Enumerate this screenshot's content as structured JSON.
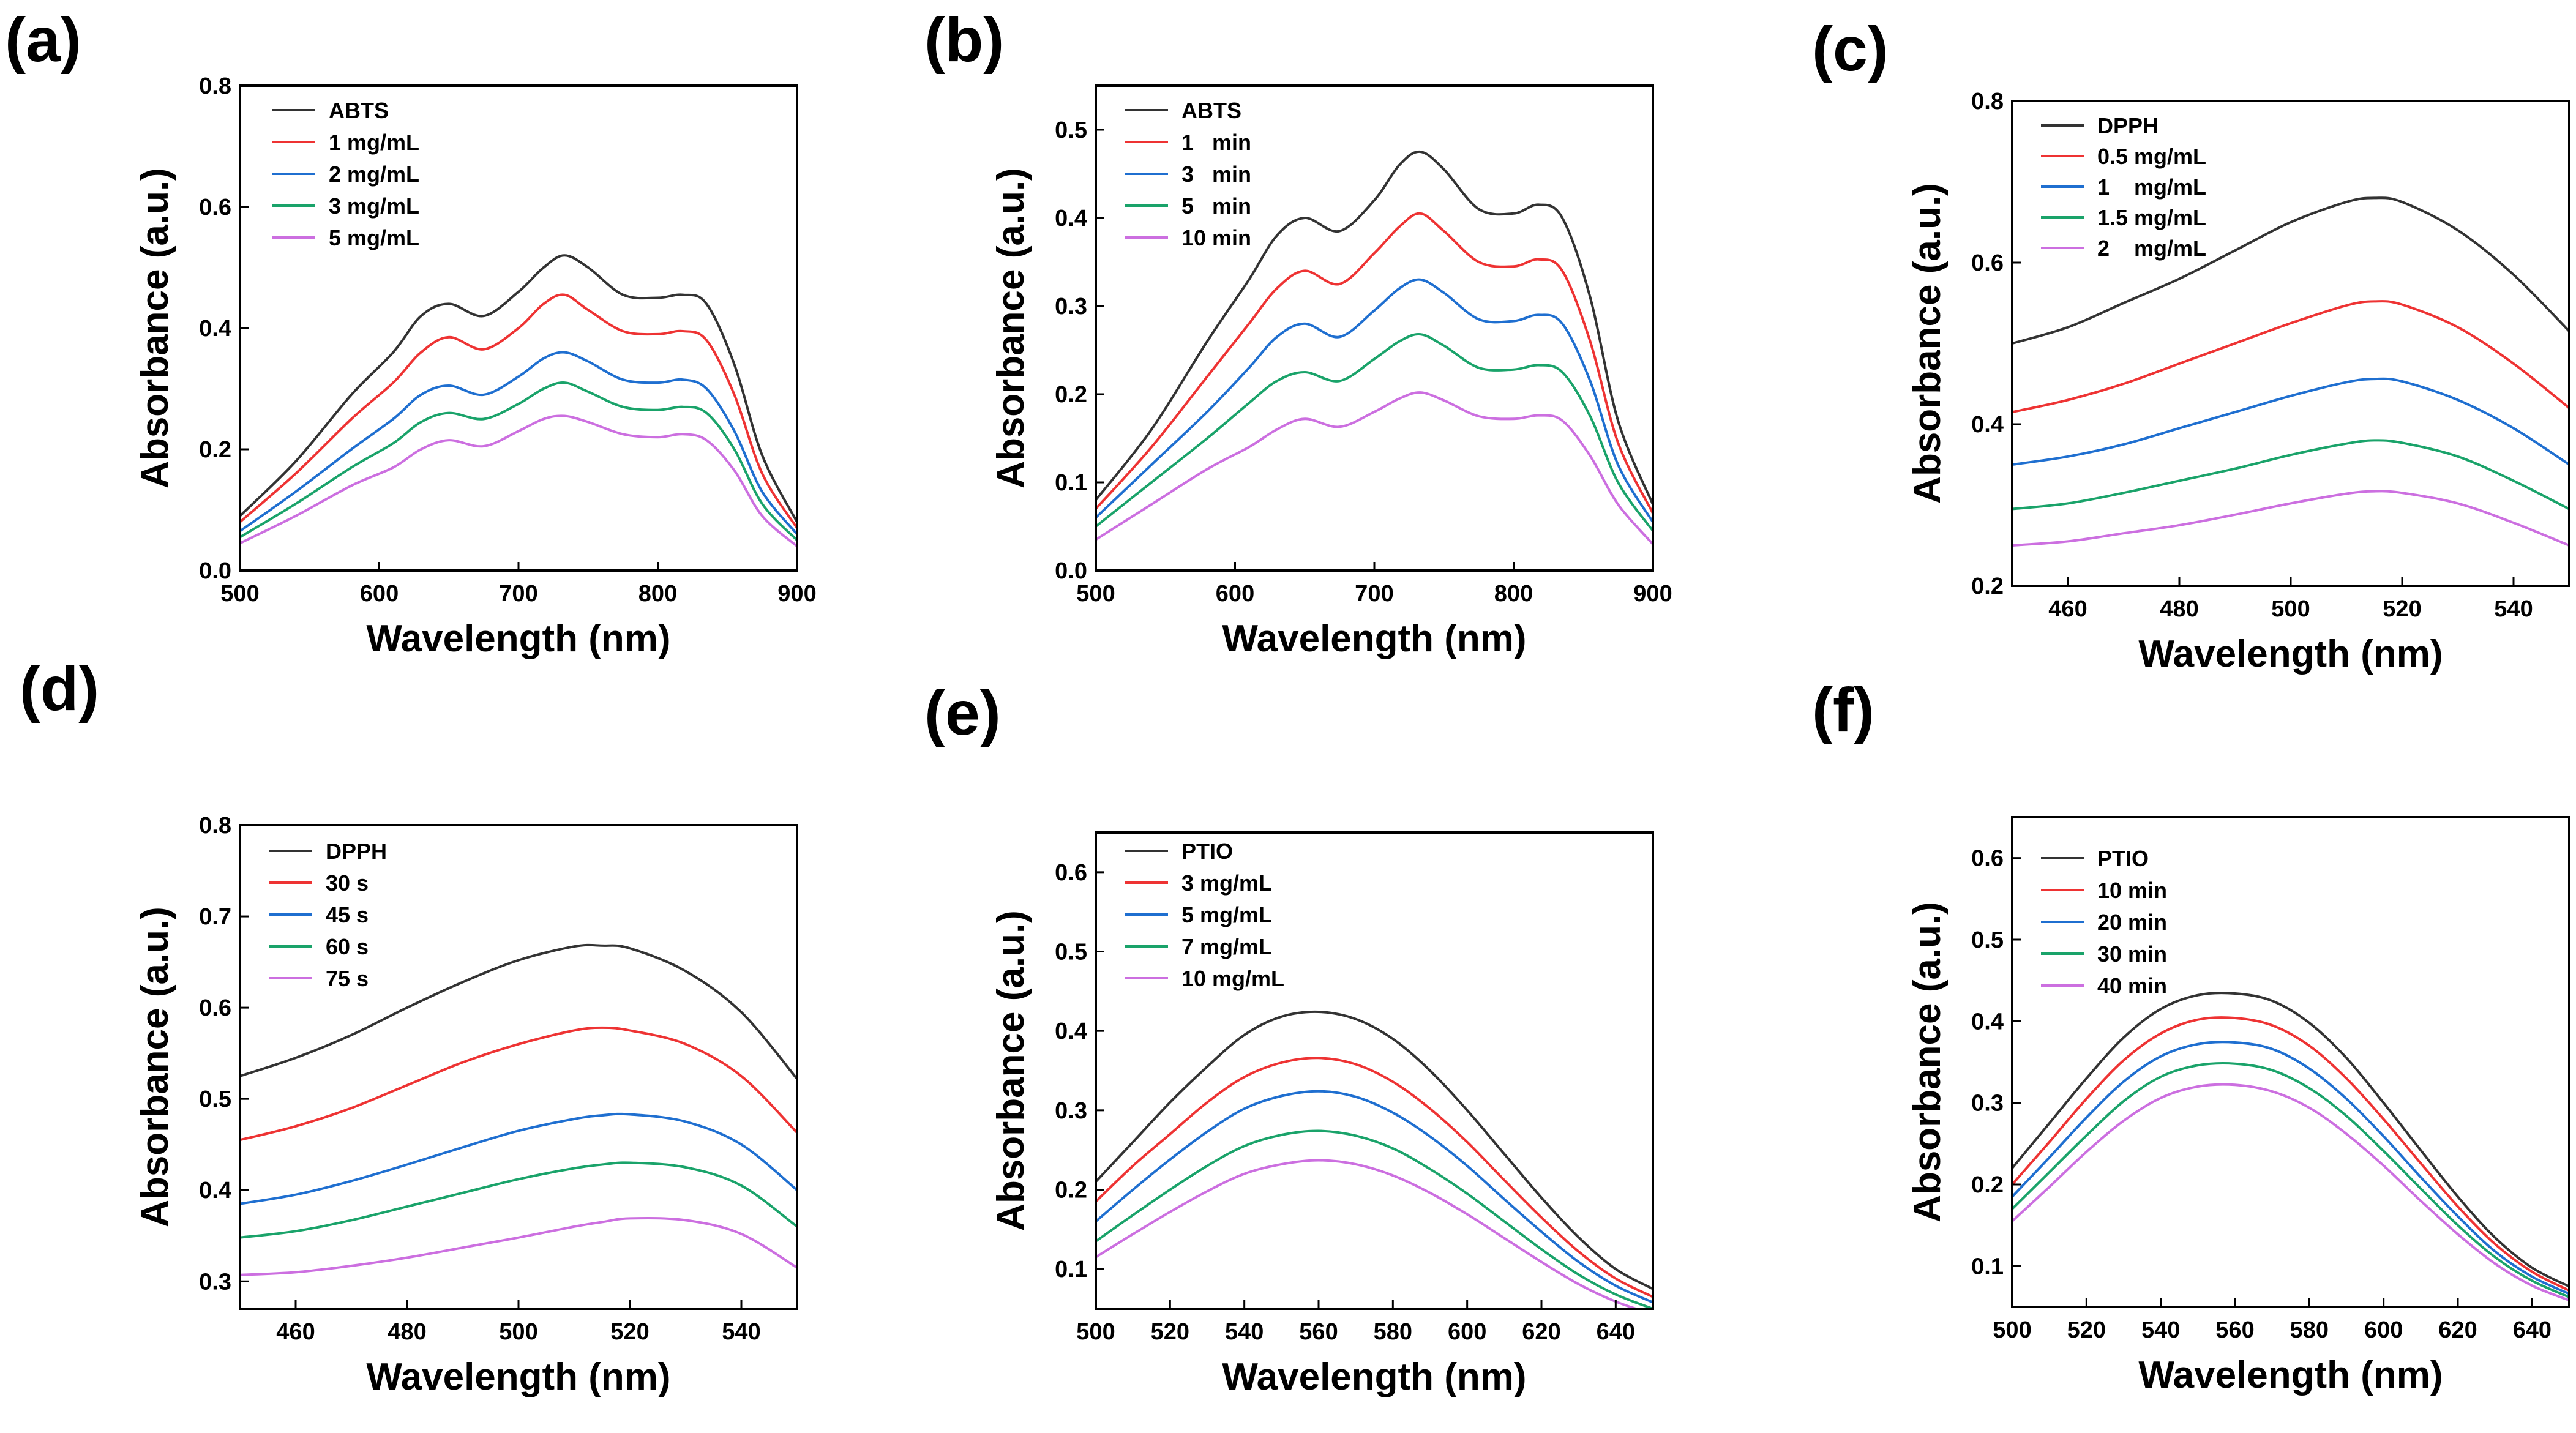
{
  "colors": {
    "black": "#333333",
    "red": "#ee3333",
    "blue": "#1f6fd0",
    "green": "#1aa36a",
    "magenta": "#cc6fe0"
  },
  "chart_data": [
    {
      "id": "a",
      "panel_label": "(a)",
      "type": "line",
      "xlabel": "Wavelength (nm)",
      "ylabel": "Absorbance (a.u.)",
      "xlim": [
        500,
        900
      ],
      "ylim": [
        0.0,
        0.8
      ],
      "xticks": [
        500,
        600,
        700,
        800,
        900
      ],
      "xtick_labels": [
        "500",
        "600",
        "700",
        "800",
        "900"
      ],
      "yticks": [
        0.0,
        0.2,
        0.4,
        0.6,
        0.8
      ],
      "ytick_labels": [
        "0.0",
        "0.2",
        "0.4",
        "0.6",
        "0.8"
      ],
      "legend_position": "top-left",
      "x": [
        500,
        540,
        580,
        610,
        630,
        650,
        675,
        700,
        718,
        733,
        750,
        775,
        800,
        818,
        835,
        855,
        875,
        900
      ],
      "series": [
        {
          "name": "ABTS",
          "color": "#333333",
          "values": [
            0.09,
            0.18,
            0.29,
            0.36,
            0.42,
            0.44,
            0.42,
            0.46,
            0.5,
            0.52,
            0.5,
            0.455,
            0.45,
            0.455,
            0.44,
            0.34,
            0.19,
            0.08
          ]
        },
        {
          "name": "1 mg/mL",
          "color": "#ee3333",
          "values": [
            0.08,
            0.16,
            0.25,
            0.31,
            0.36,
            0.385,
            0.365,
            0.4,
            0.44,
            0.455,
            0.43,
            0.395,
            0.39,
            0.395,
            0.38,
            0.29,
            0.16,
            0.07
          ]
        },
        {
          "name": "2 mg/mL",
          "color": "#1f6fd0",
          "values": [
            0.065,
            0.13,
            0.2,
            0.25,
            0.29,
            0.305,
            0.29,
            0.32,
            0.35,
            0.36,
            0.345,
            0.315,
            0.31,
            0.315,
            0.3,
            0.23,
            0.13,
            0.06
          ]
        },
        {
          "name": "3 mg/mL",
          "color": "#1aa36a",
          "values": [
            0.055,
            0.11,
            0.17,
            0.21,
            0.245,
            0.26,
            0.25,
            0.275,
            0.3,
            0.31,
            0.295,
            0.27,
            0.265,
            0.27,
            0.26,
            0.2,
            0.11,
            0.05
          ]
        },
        {
          "name": "5 mg/mL",
          "color": "#cc6fe0",
          "values": [
            0.045,
            0.09,
            0.14,
            0.17,
            0.2,
            0.215,
            0.205,
            0.23,
            0.25,
            0.255,
            0.245,
            0.225,
            0.22,
            0.225,
            0.215,
            0.165,
            0.09,
            0.04
          ]
        }
      ]
    },
    {
      "id": "b",
      "panel_label": "(b)",
      "type": "line",
      "xlabel": "Wavelength (nm)",
      "ylabel": "Absorbance (a.u.)",
      "xlim": [
        500,
        900
      ],
      "ylim": [
        0.0,
        0.55
      ],
      "xticks": [
        500,
        600,
        700,
        800,
        900
      ],
      "xtick_labels": [
        "500",
        "600",
        "700",
        "800",
        "900"
      ],
      "yticks": [
        0.0,
        0.1,
        0.2,
        0.3,
        0.4,
        0.5
      ],
      "ytick_labels": [
        "0.0",
        "0.1",
        "0.2",
        "0.3",
        "0.4",
        "0.5"
      ],
      "legend_position": "top-left",
      "x": [
        500,
        540,
        580,
        610,
        630,
        650,
        675,
        700,
        718,
        733,
        750,
        775,
        800,
        818,
        835,
        855,
        875,
        900
      ],
      "series": [
        {
          "name": "ABTS",
          "color": "#333333",
          "values": [
            0.08,
            0.16,
            0.26,
            0.33,
            0.38,
            0.4,
            0.385,
            0.42,
            0.46,
            0.475,
            0.455,
            0.41,
            0.405,
            0.415,
            0.4,
            0.31,
            0.17,
            0.075
          ]
        },
        {
          "name": "1   min",
          "color": "#ee3333",
          "values": [
            0.07,
            0.14,
            0.22,
            0.28,
            0.32,
            0.34,
            0.325,
            0.36,
            0.39,
            0.405,
            0.385,
            0.35,
            0.345,
            0.353,
            0.34,
            0.26,
            0.145,
            0.065
          ]
        },
        {
          "name": "3   min",
          "color": "#1f6fd0",
          "values": [
            0.06,
            0.12,
            0.18,
            0.23,
            0.265,
            0.28,
            0.265,
            0.295,
            0.32,
            0.33,
            0.315,
            0.285,
            0.283,
            0.29,
            0.28,
            0.215,
            0.12,
            0.055
          ]
        },
        {
          "name": "5   min",
          "color": "#1aa36a",
          "values": [
            0.05,
            0.1,
            0.15,
            0.19,
            0.215,
            0.225,
            0.215,
            0.24,
            0.26,
            0.268,
            0.255,
            0.23,
            0.228,
            0.233,
            0.225,
            0.175,
            0.1,
            0.045
          ]
        },
        {
          "name": "10 min",
          "color": "#cc6fe0",
          "values": [
            0.035,
            0.075,
            0.115,
            0.14,
            0.16,
            0.172,
            0.163,
            0.18,
            0.195,
            0.202,
            0.193,
            0.175,
            0.172,
            0.176,
            0.17,
            0.13,
            0.075,
            0.03
          ]
        }
      ]
    },
    {
      "id": "c",
      "panel_label": "(c)",
      "type": "line",
      "xlabel": "Wavelength (nm)",
      "ylabel": "Absorbance (a.u.)",
      "xlim": [
        450,
        550
      ],
      "ylim": [
        0.2,
        0.8
      ],
      "xticks": [
        460,
        480,
        500,
        520,
        540
      ],
      "xtick_labels": [
        "460",
        "480",
        "500",
        "520",
        "540"
      ],
      "yticks": [
        0.2,
        0.4,
        0.6,
        0.8
      ],
      "ytick_labels": [
        "0.2",
        "0.4",
        "0.6",
        "0.8"
      ],
      "legend_position": "top-left",
      "x": [
        450,
        460,
        470,
        480,
        490,
        500,
        510,
        515,
        520,
        530,
        540,
        550
      ],
      "series": [
        {
          "name": "DPPH",
          "color": "#333333",
          "values": [
            0.5,
            0.52,
            0.55,
            0.58,
            0.615,
            0.65,
            0.675,
            0.68,
            0.675,
            0.64,
            0.585,
            0.515
          ]
        },
        {
          "name": "0.5 mg/mL",
          "color": "#ee3333",
          "values": [
            0.415,
            0.43,
            0.45,
            0.475,
            0.5,
            0.525,
            0.547,
            0.552,
            0.548,
            0.52,
            0.475,
            0.42
          ]
        },
        {
          "name": "1    mg/mL",
          "color": "#1f6fd0",
          "values": [
            0.35,
            0.36,
            0.375,
            0.395,
            0.415,
            0.435,
            0.452,
            0.456,
            0.453,
            0.43,
            0.395,
            0.35
          ]
        },
        {
          "name": "1.5 mg/mL",
          "color": "#1aa36a",
          "values": [
            0.295,
            0.302,
            0.315,
            0.33,
            0.345,
            0.362,
            0.376,
            0.38,
            0.377,
            0.36,
            0.33,
            0.295
          ]
        },
        {
          "name": "2    mg/mL",
          "color": "#cc6fe0",
          "values": [
            0.25,
            0.255,
            0.265,
            0.275,
            0.288,
            0.302,
            0.314,
            0.317,
            0.315,
            0.302,
            0.278,
            0.25
          ]
        }
      ]
    },
    {
      "id": "d",
      "panel_label": "(d)",
      "type": "line",
      "xlabel": "Wavelength (nm)",
      "ylabel": "Absorbance (a.u.)",
      "xlim": [
        450,
        550
      ],
      "ylim": [
        0.27,
        0.8
      ],
      "xticks": [
        460,
        480,
        500,
        520,
        540
      ],
      "xtick_labels": [
        "460",
        "480",
        "500",
        "520",
        "540"
      ],
      "yticks": [
        0.3,
        0.4,
        0.5,
        0.6,
        0.7,
        0.8
      ],
      "ytick_labels": [
        "0.3",
        "0.4",
        "0.5",
        "0.6",
        "0.7",
        "0.8"
      ],
      "legend_position": "top-left",
      "x": [
        450,
        460,
        470,
        480,
        490,
        500,
        510,
        515,
        520,
        530,
        540,
        550
      ],
      "series": [
        {
          "name": "30 s",
          "color": "#ee3333",
          "values": [
            0.455,
            0.47,
            0.49,
            0.515,
            0.54,
            0.56,
            0.575,
            0.578,
            0.575,
            0.56,
            0.525,
            0.463
          ]
        },
        {
          "name": "45 s",
          "color": "#1f6fd0",
          "values": [
            0.385,
            0.395,
            0.41,
            0.428,
            0.447,
            0.465,
            0.478,
            0.482,
            0.483,
            0.475,
            0.45,
            0.4
          ]
        },
        {
          "name": "60 s",
          "color": "#1aa36a",
          "values": [
            0.348,
            0.355,
            0.367,
            0.382,
            0.397,
            0.412,
            0.424,
            0.428,
            0.43,
            0.425,
            0.405,
            0.36
          ]
        },
        {
          "name": "75 s",
          "color": "#cc6fe0",
          "values": [
            0.307,
            0.31,
            0.317,
            0.326,
            0.337,
            0.348,
            0.36,
            0.365,
            0.369,
            0.367,
            0.352,
            0.315
          ]
        },
        {
          "name": "DPPH",
          "color": "#333333",
          "values": [
            0.525,
            0.545,
            0.57,
            0.6,
            0.628,
            0.652,
            0.667,
            0.668,
            0.665,
            0.64,
            0.595,
            0.522
          ]
        }
      ]
    },
    {
      "id": "e",
      "panel_label": "(e)",
      "type": "line",
      "xlabel": "Wavelength (nm)",
      "ylabel": "Absorbance (a.u.)",
      "xlim": [
        500,
        650
      ],
      "ylim": [
        0.05,
        0.65
      ],
      "xticks": [
        500,
        520,
        540,
        560,
        580,
        600,
        620,
        640
      ],
      "xtick_labels": [
        "500",
        "520",
        "540",
        "560",
        "580",
        "600",
        "620",
        "640"
      ],
      "yticks": [
        0.1,
        0.2,
        0.3,
        0.4,
        0.5,
        0.6
      ],
      "ytick_labels": [
        "0.1",
        "0.2",
        "0.3",
        "0.4",
        "0.5",
        "0.6"
      ],
      "legend_position": "top-left",
      "x": [
        500,
        510,
        520,
        530,
        540,
        550,
        560,
        570,
        580,
        590,
        600,
        610,
        620,
        630,
        640,
        650
      ],
      "series": [
        {
          "name": "PTIO",
          "color": "#333333",
          "values": [
            0.21,
            0.26,
            0.31,
            0.355,
            0.395,
            0.418,
            0.424,
            0.415,
            0.39,
            0.35,
            0.3,
            0.245,
            0.19,
            0.14,
            0.1,
            0.075
          ]
        },
        {
          "name": "3 mg/mL",
          "color": "#ee3333",
          "values": [
            0.185,
            0.23,
            0.27,
            0.31,
            0.342,
            0.36,
            0.366,
            0.358,
            0.336,
            0.302,
            0.26,
            0.212,
            0.165,
            0.122,
            0.088,
            0.065
          ]
        },
        {
          "name": "5 mg/mL",
          "color": "#1f6fd0",
          "values": [
            0.16,
            0.2,
            0.238,
            0.273,
            0.302,
            0.318,
            0.324,
            0.317,
            0.297,
            0.267,
            0.23,
            0.188,
            0.147,
            0.109,
            0.079,
            0.058
          ]
        },
        {
          "name": "7 mg/mL",
          "color": "#1aa36a",
          "values": [
            0.135,
            0.168,
            0.2,
            0.23,
            0.255,
            0.269,
            0.274,
            0.268,
            0.252,
            0.226,
            0.195,
            0.16,
            0.125,
            0.093,
            0.068,
            0.05
          ]
        },
        {
          "name": "10 mg/mL",
          "color": "#cc6fe0",
          "values": [
            0.115,
            0.144,
            0.172,
            0.198,
            0.22,
            0.232,
            0.237,
            0.232,
            0.218,
            0.196,
            0.169,
            0.139,
            0.109,
            0.081,
            0.059,
            0.043
          ]
        }
      ]
    },
    {
      "id": "f",
      "panel_label": "(f)",
      "type": "line",
      "xlabel": "Wavelength (nm)",
      "ylabel": "Absorbance (a.u.)",
      "xlim": [
        500,
        650
      ],
      "ylim": [
        0.05,
        0.65
      ],
      "xticks": [
        500,
        520,
        540,
        560,
        580,
        600,
        620,
        640
      ],
      "xtick_labels": [
        "500",
        "520",
        "540",
        "560",
        "580",
        "600",
        "620",
        "640"
      ],
      "yticks": [
        0.1,
        0.2,
        0.3,
        0.4,
        0.5,
        0.6
      ],
      "ytick_labels": [
        "0.1",
        "0.2",
        "0.3",
        "0.4",
        "0.5",
        "0.6"
      ],
      "legend_position": "top-left",
      "x": [
        500,
        510,
        520,
        530,
        540,
        550,
        560,
        570,
        580,
        590,
        600,
        610,
        620,
        630,
        640,
        650
      ],
      "series": [
        {
          "name": "PTIO",
          "color": "#333333",
          "values": [
            0.22,
            0.275,
            0.33,
            0.38,
            0.415,
            0.432,
            0.434,
            0.425,
            0.398,
            0.355,
            0.3,
            0.242,
            0.185,
            0.135,
            0.098,
            0.075
          ]
        },
        {
          "name": "10 min",
          "color": "#ee3333",
          "values": [
            0.2,
            0.252,
            0.305,
            0.352,
            0.385,
            0.402,
            0.404,
            0.395,
            0.37,
            0.33,
            0.28,
            0.226,
            0.173,
            0.127,
            0.093,
            0.07
          ]
        },
        {
          "name": "20 min",
          "color": "#1f6fd0",
          "values": [
            0.185,
            0.233,
            0.282,
            0.326,
            0.357,
            0.372,
            0.374,
            0.366,
            0.342,
            0.305,
            0.259,
            0.209,
            0.161,
            0.118,
            0.087,
            0.066
          ]
        },
        {
          "name": "30 min",
          "color": "#1aa36a",
          "values": [
            0.17,
            0.215,
            0.26,
            0.302,
            0.332,
            0.346,
            0.348,
            0.34,
            0.318,
            0.284,
            0.241,
            0.195,
            0.15,
            0.111,
            0.082,
            0.062
          ]
        },
        {
          "name": "40 min",
          "color": "#cc6fe0",
          "values": [
            0.155,
            0.197,
            0.24,
            0.278,
            0.306,
            0.32,
            0.322,
            0.314,
            0.294,
            0.262,
            0.223,
            0.18,
            0.139,
            0.103,
            0.076,
            0.058
          ]
        }
      ]
    }
  ]
}
